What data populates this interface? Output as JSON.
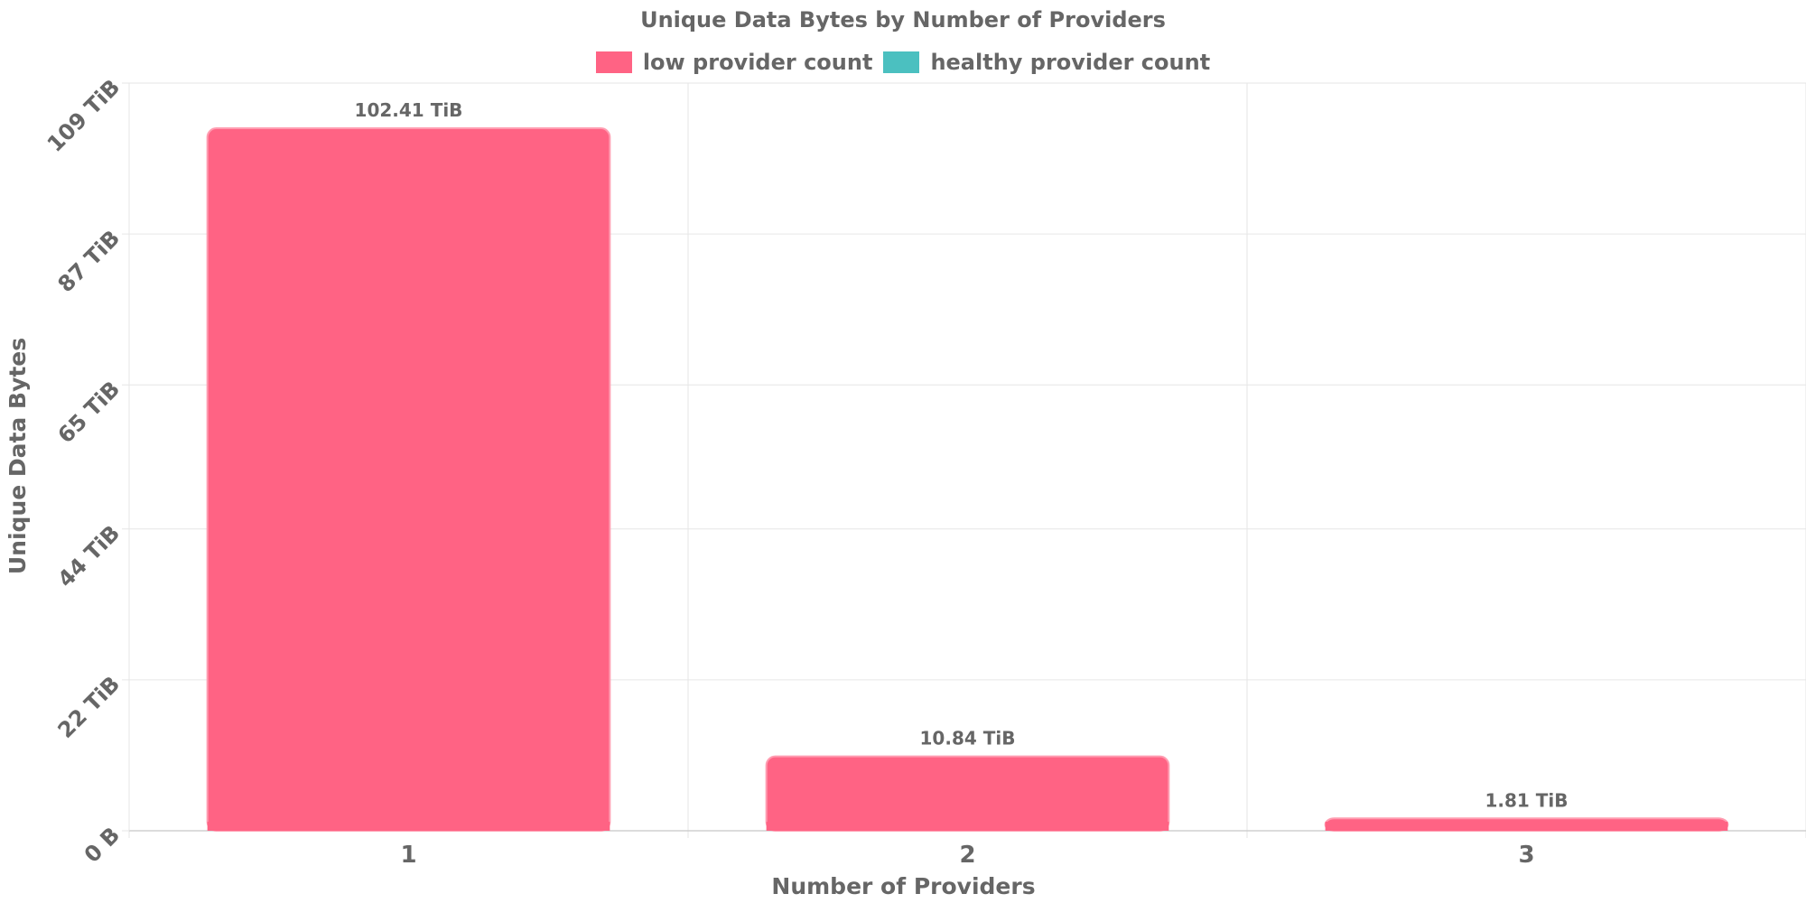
{
  "chart_data": {
    "type": "bar",
    "title": "Unique Data Bytes by Number of Providers",
    "xlabel": "Number of Providers",
    "ylabel": "Unique Data Bytes",
    "categories": [
      "1",
      "2",
      "3"
    ],
    "series": [
      {
        "name": "low provider count",
        "color": "#ff6384",
        "values": [
          102.41,
          10.84,
          1.81
        ],
        "value_labels": [
          "102.41 TiB",
          "10.84 TiB",
          "1.81 TiB"
        ]
      },
      {
        "name": "healthy provider count",
        "color": "#4bc0c0",
        "values": [
          0,
          0,
          0
        ]
      }
    ],
    "y_unit": "TiB",
    "ylim": [
      0,
      109
    ],
    "yticks": [
      {
        "value": 0,
        "label": "0 B"
      },
      {
        "value": 22,
        "label": "22 TiB"
      },
      {
        "value": 44,
        "label": "44 TiB"
      },
      {
        "value": 65,
        "label": "65 TiB"
      },
      {
        "value": 87,
        "label": "87 TiB"
      },
      {
        "value": 109,
        "label": "109 TiB"
      }
    ],
    "grid": true,
    "legend_position": "top-center"
  }
}
